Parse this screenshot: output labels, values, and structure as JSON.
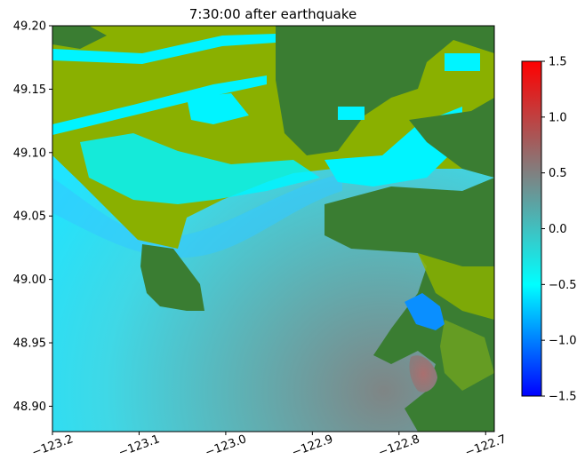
{
  "chart_data": {
    "type": "heatmap",
    "title": "7:30:00 after earthquake",
    "xlabel": "",
    "ylabel": "",
    "xlim": [
      -123.2,
      -122.69
    ],
    "ylim": [
      48.88,
      49.2
    ],
    "x_ticks": [
      -123.2,
      -123.1,
      -123.0,
      -122.9,
      -122.8,
      -122.7
    ],
    "x_tick_labels": [
      "−123.2",
      "−123.1",
      "−123.0",
      "−122.9",
      "−122.8",
      "−122.7"
    ],
    "y_ticks": [
      48.9,
      48.95,
      49.0,
      49.05,
      49.1,
      49.15,
      49.2
    ],
    "y_tick_labels": [
      "48.90",
      "48.95",
      "49.00",
      "49.05",
      "49.10",
      "49.15",
      "49.20"
    ],
    "grid": false,
    "colorbar": {
      "vmin": -1.5,
      "vmax": 1.5,
      "ticks": [
        -1.5,
        -1.0,
        -0.5,
        0.0,
        0.5,
        1.0,
        1.5
      ],
      "tick_labels": [
        "−1.5",
        "−1.0",
        "−0.5",
        "0.0",
        "0.5",
        "1.0",
        "1.5"
      ],
      "colors": [
        "#0000ff",
        "#00ffff",
        "#808080",
        "#ff0000"
      ],
      "position": "right"
    },
    "colors": {
      "land_dark": "#3a7d32",
      "land_light": "#8ab000",
      "water_surface": "#5fb4b6"
    }
  }
}
